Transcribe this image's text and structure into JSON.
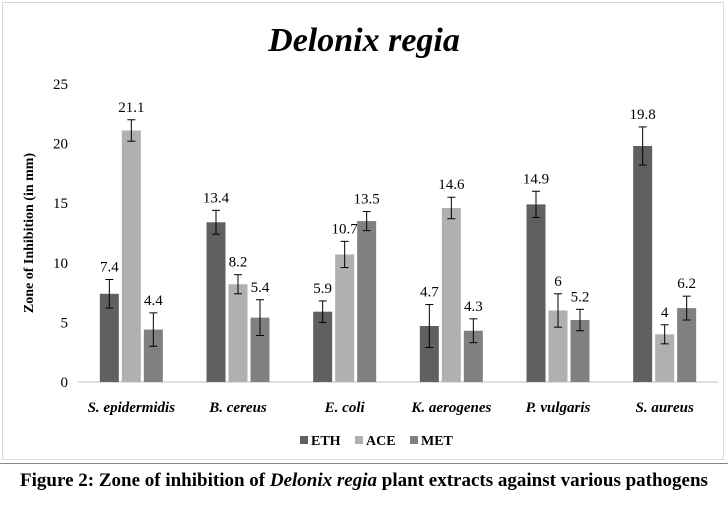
{
  "chart_data": {
    "type": "bar",
    "title": "Delonix regia",
    "xlabel": "",
    "ylabel": "Zone of Inhibition (in mm)",
    "ylim": [
      0,
      25
    ],
    "yticks": [
      0,
      5,
      10,
      15,
      20,
      25
    ],
    "grid": false,
    "legend": "bottom",
    "categories": [
      "S. epidermidis",
      "B. cereus",
      "E. coli",
      "K. aerogenes",
      "P. vulgaris",
      "S. aureus"
    ],
    "series": [
      {
        "name": "ETH",
        "color": "#606060",
        "values": [
          7.4,
          13.4,
          5.9,
          4.7,
          14.9,
          19.8
        ],
        "errors": [
          1.2,
          1.0,
          0.9,
          1.8,
          1.1,
          1.6
        ]
      },
      {
        "name": "ACE",
        "color": "#b0b0b0",
        "values": [
          21.1,
          8.2,
          10.7,
          14.6,
          6,
          4
        ],
        "errors": [
          0.9,
          0.8,
          1.1,
          0.9,
          1.4,
          0.8
        ]
      },
      {
        "name": "MET",
        "color": "#808080",
        "values": [
          4.4,
          5.4,
          13.5,
          4.3,
          5.2,
          6.2
        ],
        "errors": [
          1.4,
          1.5,
          0.8,
          1.0,
          0.9,
          1.0
        ]
      }
    ]
  },
  "caption": {
    "prefix": "Figure 2: Zone of inhibition of ",
    "italic": "Delonix regia",
    "suffix": " plant extracts against various pathogens"
  }
}
